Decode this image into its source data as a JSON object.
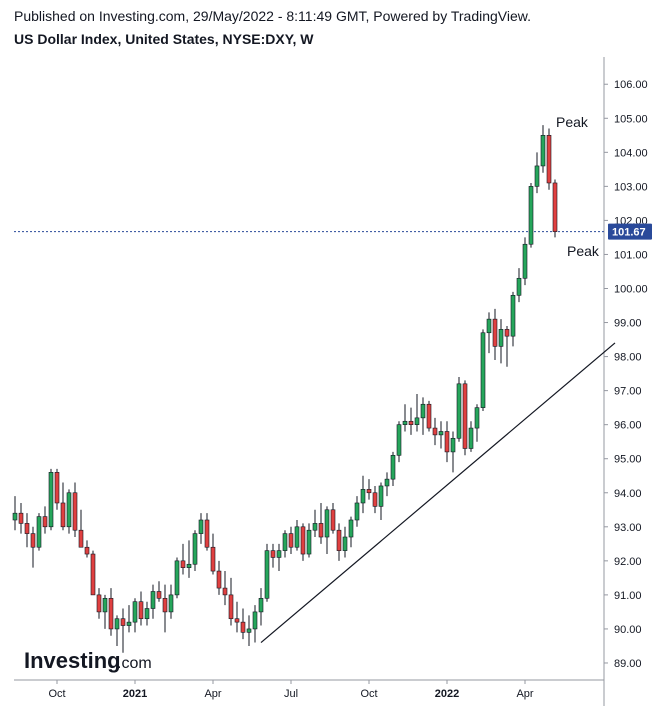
{
  "header": {
    "published": "Published on Investing.com, 29/May/2022 - 8:11:49 GMT, Powered by TradingView.",
    "title": "US Dollar Index, United States, NYSE:DXY, W"
  },
  "brand": {
    "name": "Investing",
    "suffix": ".com"
  },
  "annotations": {
    "peak_upper": "Peak",
    "peak_lower": "Peak"
  },
  "colors": {
    "up": "#26a65b",
    "down": "#e04040",
    "wick": "#131722",
    "last_price_bg": "#2a4a9a",
    "last_price_line": "#2a4a9a"
  },
  "chart_data": {
    "type": "candlestick",
    "title": "US Dollar Index, United States, NYSE:DXY, W",
    "timeframe": "W",
    "ylim": [
      88.5,
      106.8
    ],
    "y_ticks": [
      "89.00",
      "90.00",
      "91.00",
      "92.00",
      "93.00",
      "94.00",
      "95.00",
      "96.00",
      "97.00",
      "98.00",
      "99.00",
      "100.00",
      "101.00",
      "102.00",
      "103.00",
      "104.00",
      "105.00",
      "106.00"
    ],
    "x_ticks": [
      {
        "label": "Oct",
        "index": 7
      },
      {
        "label": "2021",
        "index": 20
      },
      {
        "label": "Apr",
        "index": 33
      },
      {
        "label": "Jul",
        "index": 46
      },
      {
        "label": "Oct",
        "index": 59
      },
      {
        "label": "2022",
        "index": 72
      },
      {
        "label": "Apr",
        "index": 85
      }
    ],
    "last_price": "101.67",
    "last_price_value": 101.67,
    "trendline": {
      "from": {
        "index": 41,
        "value": 89.6
      },
      "to": {
        "index": 100,
        "value": 98.4
      }
    },
    "candles": [
      [
        93.2,
        93.9,
        92.9,
        93.4
      ],
      [
        93.4,
        93.7,
        92.8,
        93.1
      ],
      [
        93.1,
        93.4,
        92.4,
        92.8
      ],
      [
        92.8,
        93.0,
        91.8,
        92.4
      ],
      [
        92.4,
        93.4,
        92.3,
        93.3
      ],
      [
        93.3,
        93.6,
        92.8,
        93.0
      ],
      [
        93.0,
        94.7,
        92.9,
        94.6
      ],
      [
        94.6,
        94.7,
        93.5,
        93.7
      ],
      [
        93.7,
        94.3,
        92.9,
        93.0
      ],
      [
        93.0,
        94.1,
        92.8,
        94.0
      ],
      [
        94.0,
        94.3,
        92.7,
        92.9
      ],
      [
        92.9,
        93.5,
        92.4,
        92.4
      ],
      [
        92.4,
        92.6,
        92.1,
        92.2
      ],
      [
        92.2,
        92.3,
        91.0,
        91.0
      ],
      [
        91.0,
        91.2,
        90.3,
        90.5
      ],
      [
        90.5,
        91.0,
        90.0,
        90.9
      ],
      [
        90.9,
        91.2,
        89.8,
        90.0
      ],
      [
        90.0,
        90.4,
        89.5,
        90.3
      ],
      [
        90.3,
        90.6,
        89.3,
        90.1
      ],
      [
        90.1,
        90.7,
        89.9,
        90.2
      ],
      [
        90.2,
        90.9,
        89.9,
        90.8
      ],
      [
        90.8,
        91.1,
        90.1,
        90.3
      ],
      [
        90.3,
        90.8,
        90.1,
        90.6
      ],
      [
        90.6,
        91.3,
        90.3,
        91.1
      ],
      [
        91.1,
        91.4,
        90.8,
        90.9
      ],
      [
        90.9,
        91.3,
        89.9,
        90.5
      ],
      [
        90.5,
        91.3,
        90.3,
        91.0
      ],
      [
        91.0,
        92.1,
        90.9,
        92.0
      ],
      [
        92.0,
        92.5,
        91.6,
        91.8
      ],
      [
        91.8,
        92.6,
        91.5,
        91.9
      ],
      [
        91.9,
        92.9,
        91.7,
        92.8
      ],
      [
        92.8,
        93.4,
        92.5,
        93.2
      ],
      [
        93.2,
        93.4,
        92.3,
        92.4
      ],
      [
        92.4,
        92.8,
        91.6,
        91.7
      ],
      [
        91.7,
        92.0,
        91.0,
        91.2
      ],
      [
        91.2,
        91.7,
        90.7,
        91.0
      ],
      [
        91.0,
        91.5,
        90.1,
        90.3
      ],
      [
        90.3,
        90.8,
        89.9,
        90.2
      ],
      [
        90.2,
        90.6,
        89.7,
        89.9
      ],
      [
        89.9,
        90.4,
        89.5,
        90.0
      ],
      [
        90.0,
        90.7,
        89.6,
        90.5
      ],
      [
        90.5,
        91.2,
        90.1,
        90.9
      ],
      [
        90.9,
        92.5,
        90.8,
        92.3
      ],
      [
        92.3,
        92.5,
        91.8,
        92.1
      ],
      [
        92.1,
        92.5,
        91.7,
        92.3
      ],
      [
        92.3,
        92.9,
        92.1,
        92.8
      ],
      [
        92.8,
        93.0,
        92.2,
        92.4
      ],
      [
        92.4,
        93.2,
        92.3,
        93.0
      ],
      [
        93.0,
        93.1,
        92.0,
        92.2
      ],
      [
        92.2,
        93.1,
        92.1,
        92.9
      ],
      [
        92.9,
        93.5,
        92.7,
        93.1
      ],
      [
        93.1,
        93.7,
        92.5,
        92.7
      ],
      [
        92.7,
        93.6,
        92.2,
        93.5
      ],
      [
        93.5,
        93.7,
        92.8,
        92.9
      ],
      [
        92.9,
        93.1,
        92.0,
        92.3
      ],
      [
        92.3,
        93.0,
        92.1,
        92.7
      ],
      [
        92.7,
        93.3,
        92.4,
        93.2
      ],
      [
        93.2,
        93.9,
        93.0,
        93.7
      ],
      [
        93.7,
        94.5,
        93.4,
        94.1
      ],
      [
        94.1,
        94.4,
        93.8,
        94.0
      ],
      [
        94.0,
        94.2,
        93.4,
        93.6
      ],
      [
        93.6,
        94.3,
        93.2,
        94.2
      ],
      [
        94.2,
        94.6,
        93.9,
        94.4
      ],
      [
        94.4,
        95.2,
        94.2,
        95.1
      ],
      [
        95.1,
        96.1,
        94.9,
        96.0
      ],
      [
        96.0,
        96.6,
        95.8,
        96.1
      ],
      [
        96.1,
        96.5,
        95.7,
        96.0
      ],
      [
        96.0,
        96.9,
        95.8,
        96.2
      ],
      [
        96.2,
        96.8,
        95.7,
        96.6
      ],
      [
        96.6,
        96.7,
        95.8,
        95.9
      ],
      [
        95.9,
        96.2,
        95.4,
        95.7
      ],
      [
        95.7,
        96.1,
        95.3,
        95.8
      ],
      [
        95.8,
        96.1,
        94.9,
        95.2
      ],
      [
        95.2,
        95.8,
        94.6,
        95.6
      ],
      [
        95.6,
        97.4,
        95.5,
        97.2
      ],
      [
        97.2,
        97.3,
        95.1,
        95.3
      ],
      [
        95.3,
        96.1,
        95.2,
        95.9
      ],
      [
        95.9,
        96.6,
        95.5,
        96.5
      ],
      [
        96.5,
        98.8,
        96.4,
        98.7
      ],
      [
        98.7,
        99.3,
        98.1,
        99.1
      ],
      [
        99.1,
        99.4,
        97.9,
        98.3
      ],
      [
        98.3,
        99.1,
        97.8,
        98.8
      ],
      [
        98.8,
        98.9,
        97.7,
        98.6
      ],
      [
        98.6,
        99.9,
        98.3,
        99.8
      ],
      [
        99.8,
        100.6,
        99.6,
        100.3
      ],
      [
        100.3,
        101.5,
        100.1,
        101.3
      ],
      [
        101.3,
        103.1,
        101.2,
        103.0
      ],
      [
        103.0,
        104.0,
        102.8,
        103.6
      ],
      [
        103.6,
        104.8,
        103.4,
        104.5
      ],
      [
        104.5,
        104.7,
        102.9,
        103.1
      ],
      [
        103.1,
        103.2,
        101.5,
        101.67
      ]
    ]
  }
}
